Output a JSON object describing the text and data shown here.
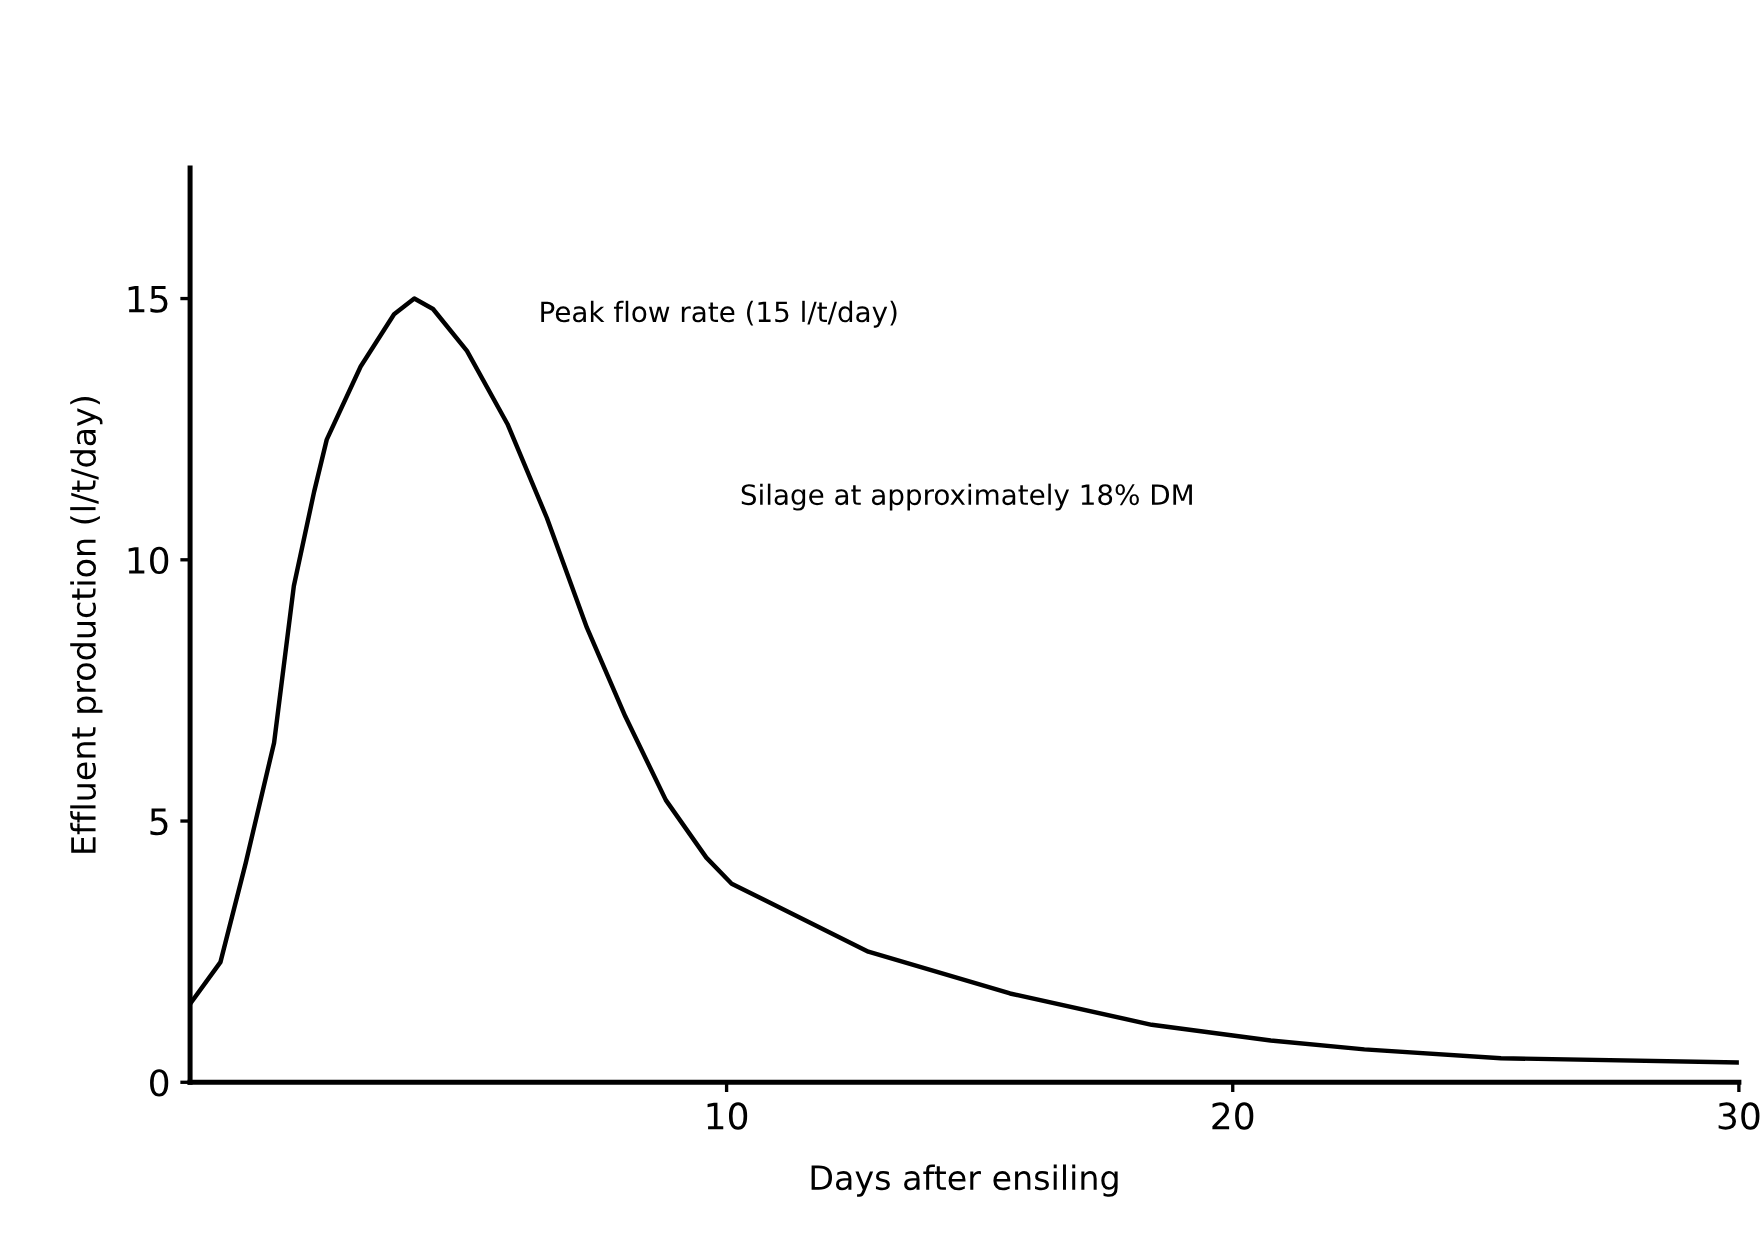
{
  "chart_data": {
    "type": "line",
    "xlabel": "Days after ensiling",
    "ylabel": "Effluent production (l/t/day)",
    "annotations": [
      "Peak flow rate (15 l/t/day)",
      "Silage at approximately 18% DM"
    ],
    "series": [
      {
        "color": "#000000",
        "x": [
          -0.6,
          0,
          0.5,
          1.06,
          1.45,
          1.85,
          2.1,
          2.77,
          3.43,
          3.83,
          4.2,
          4.87,
          5.67,
          6.45,
          7.24,
          8.0,
          8.8,
          9.6,
          10.1,
          12.8,
          15.6,
          18.4,
          20.75,
          22.6,
          25.3,
          30
        ],
        "values": [
          1.5,
          2.3,
          4.2,
          6.5,
          9.5,
          11.3,
          12.3,
          13.7,
          14.7,
          15.0,
          14.8,
          14.0,
          12.6,
          10.8,
          8.7,
          7.0,
          5.4,
          4.3,
          3.8,
          2.5,
          1.7,
          1.1,
          0.8,
          0.63,
          0.46,
          0.38
        ]
      }
    ],
    "xlim": [
      -0.6,
      30
    ],
    "ylim": [
      0,
      17.5
    ],
    "xticks": [
      10,
      20,
      30
    ],
    "yticks": [
      0,
      5,
      10,
      15
    ],
    "grid": false,
    "legend": false,
    "marker": "none",
    "line_style": "solid"
  }
}
